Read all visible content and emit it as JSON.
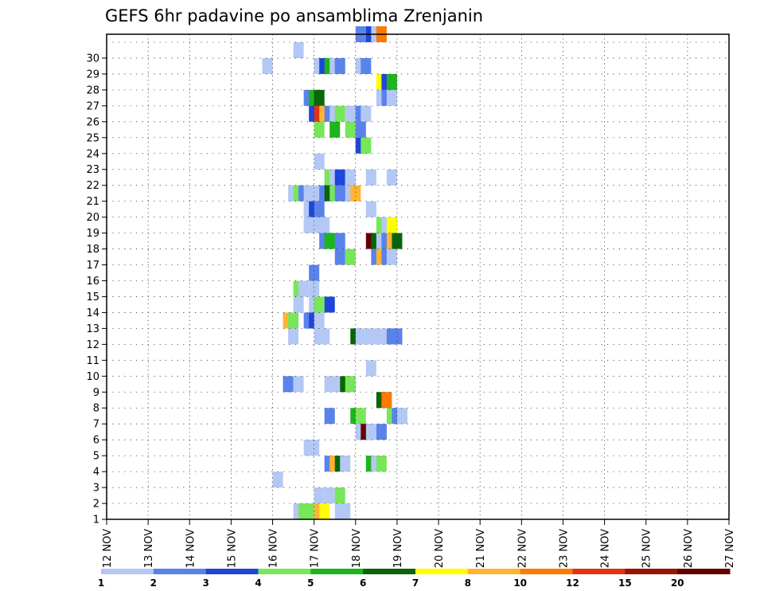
{
  "chart_data": {
    "type": "heatmap",
    "title": "GEFS 6hr padavine po ansamblima Zrenjanin",
    "x_labels": [
      "12 NOV",
      "13 NOV",
      "14 NOV",
      "15 NOV",
      "16 NOV",
      "17 NOV",
      "18 NOV",
      "19 NOV",
      "20 NOV",
      "21 NOV",
      "22 NOV",
      "23 NOV",
      "24 NOV",
      "25 NOV",
      "26 NOV",
      "27 NOV"
    ],
    "y_labels": [
      "1",
      "2",
      "3",
      "4",
      "5",
      "6",
      "7",
      "8",
      "9",
      "10",
      "11",
      "12",
      "13",
      "14",
      "15",
      "16",
      "17",
      "18",
      "19",
      "20",
      "21",
      "22",
      "23",
      "24",
      "25",
      "26",
      "27",
      "28",
      "29",
      "30"
    ],
    "steps_per_day": 4,
    "grid": true,
    "legend": {
      "position": "bottom",
      "labels": [
        "1",
        "2",
        "3",
        "4",
        "5",
        "6",
        "7",
        "8",
        "10",
        "12",
        "15",
        "20"
      ],
      "colors": [
        "#b4c8f5",
        "#5a82eb",
        "#1e46d7",
        "#78e65a",
        "#1eb41e",
        "#0a640a",
        "#ffff00",
        "#ffb432",
        "#ff7800",
        "#e13214",
        "#961400",
        "#640000"
      ]
    },
    "bin_colors": [
      "#b4c8f5",
      "#5a82eb",
      "#1e46d7",
      "#78e65a",
      "#1eb41e",
      "#0a640a",
      "#ffff00",
      "#ffb432",
      "#ff7800",
      "#e13214",
      "#961400",
      "#640000"
    ],
    "bin_values": [
      1,
      2,
      3,
      4,
      5,
      6,
      7,
      8,
      10,
      12,
      15,
      20
    ],
    "cells": [
      [
        30,
        24,
        2
      ],
      [
        30,
        25,
        3
      ],
      [
        30,
        25.5,
        1
      ],
      [
        30,
        26,
        9
      ],
      [
        29,
        18,
        1
      ],
      [
        28,
        15,
        1
      ],
      [
        28,
        20,
        1
      ],
      [
        28,
        20.5,
        3
      ],
      [
        28,
        21,
        5
      ],
      [
        28,
        21.5,
        1
      ],
      [
        28,
        22,
        2
      ],
      [
        28,
        24,
        1
      ],
      [
        28,
        24.5,
        2
      ],
      [
        27,
        26,
        7
      ],
      [
        27,
        26.5,
        3
      ],
      [
        27,
        27,
        5
      ],
      [
        26,
        19,
        2
      ],
      [
        26,
        19.5,
        5
      ],
      [
        26,
        20,
        6
      ],
      [
        26,
        26,
        1
      ],
      [
        26,
        26.5,
        2
      ],
      [
        26,
        27,
        1
      ],
      [
        25,
        19.5,
        3
      ],
      [
        25,
        20,
        10
      ],
      [
        25,
        20.5,
        8
      ],
      [
        25,
        21,
        2
      ],
      [
        25,
        21.5,
        1
      ],
      [
        25,
        22,
        4
      ],
      [
        25,
        23,
        1
      ],
      [
        25,
        23.5,
        1
      ],
      [
        25,
        24,
        2
      ],
      [
        25,
        24.5,
        1
      ],
      [
        24,
        20,
        4
      ],
      [
        24,
        21.5,
        5
      ],
      [
        24,
        23,
        4
      ],
      [
        24,
        24,
        2
      ],
      [
        23,
        24,
        3
      ],
      [
        23,
        24.5,
        4
      ],
      [
        22,
        20,
        1
      ],
      [
        21,
        21,
        4
      ],
      [
        21,
        21.5,
        1
      ],
      [
        21,
        22,
        3
      ],
      [
        21,
        23,
        1
      ],
      [
        21,
        25,
        1
      ],
      [
        21,
        27,
        1
      ],
      [
        20,
        17.5,
        1
      ],
      [
        20,
        18,
        4
      ],
      [
        20,
        18.5,
        2
      ],
      [
        20,
        19,
        1
      ],
      [
        20,
        20,
        1
      ],
      [
        20,
        20.5,
        2
      ],
      [
        20,
        21,
        6
      ],
      [
        20,
        21.5,
        4
      ],
      [
        20,
        22,
        2
      ],
      [
        20,
        22.5,
        2
      ],
      [
        20,
        23,
        1
      ],
      [
        20,
        23.5,
        8
      ],
      [
        19,
        19,
        1
      ],
      [
        19,
        19.5,
        3
      ],
      [
        19,
        20,
        2
      ],
      [
        19,
        25,
        1
      ],
      [
        18,
        19,
        1
      ],
      [
        18,
        20,
        1
      ],
      [
        18,
        20.5,
        1
      ],
      [
        18,
        26,
        4
      ],
      [
        18,
        26.5,
        1
      ],
      [
        18,
        27,
        7
      ],
      [
        17,
        20.5,
        2
      ],
      [
        17,
        21,
        5
      ],
      [
        17,
        21.5,
        5
      ],
      [
        17,
        22,
        2
      ],
      [
        17,
        25,
        12
      ],
      [
        17,
        25.5,
        6
      ],
      [
        17,
        26,
        1
      ],
      [
        17,
        26.5,
        2
      ],
      [
        17,
        27,
        8
      ],
      [
        17,
        27.5,
        6
      ],
      [
        16,
        22,
        2
      ],
      [
        16,
        23,
        4
      ],
      [
        16,
        25.5,
        2
      ],
      [
        16,
        26,
        8
      ],
      [
        16,
        26.5,
        2
      ],
      [
        16,
        27,
        1
      ],
      [
        15,
        19.5,
        2
      ],
      [
        14,
        18,
        4
      ],
      [
        14,
        18.5,
        1
      ],
      [
        14,
        19.5,
        1
      ],
      [
        13,
        18,
        1
      ],
      [
        13,
        19.5,
        1
      ],
      [
        13,
        20,
        4
      ],
      [
        13,
        21,
        3
      ],
      [
        12,
        17,
        8
      ],
      [
        12,
        17.5,
        4
      ],
      [
        12,
        19,
        2
      ],
      [
        12,
        19.5,
        3
      ],
      [
        12,
        20,
        1
      ],
      [
        11,
        17.5,
        1
      ],
      [
        11,
        20,
        1
      ],
      [
        11,
        20.5,
        1
      ],
      [
        11,
        23.5,
        6
      ],
      [
        11,
        24,
        1
      ],
      [
        11,
        24.5,
        1
      ],
      [
        11,
        25,
        1
      ],
      [
        11,
        25.5,
        1
      ],
      [
        11,
        26.5,
        1
      ],
      [
        11,
        27,
        2
      ],
      [
        11,
        27.5,
        2
      ],
      [
        9,
        25,
        1
      ],
      [
        8,
        17,
        2
      ],
      [
        8,
        18,
        1
      ],
      [
        8,
        21,
        1
      ],
      [
        8,
        21.5,
        1
      ],
      [
        8,
        22.5,
        6
      ],
      [
        8,
        23,
        4
      ],
      [
        7,
        26,
        6
      ],
      [
        7,
        26.5,
        9
      ],
      [
        6,
        21,
        2
      ],
      [
        6,
        23.5,
        5
      ],
      [
        6,
        24,
        4
      ],
      [
        6,
        27,
        4
      ],
      [
        6,
        27.5,
        2
      ],
      [
        6,
        28,
        1
      ],
      [
        5,
        24,
        1
      ],
      [
        5,
        24.5,
        12
      ],
      [
        5,
        25,
        1
      ],
      [
        5,
        26,
        2
      ],
      [
        4,
        19,
        1
      ],
      [
        4,
        19.5,
        1
      ],
      [
        3,
        21,
        2
      ],
      [
        3,
        21.5,
        8
      ],
      [
        3,
        22,
        6
      ],
      [
        3,
        22.5,
        1
      ],
      [
        3,
        25,
        5
      ],
      [
        3,
        25.5,
        1
      ],
      [
        3,
        26,
        4
      ],
      [
        2,
        16,
        1
      ],
      [
        1,
        20,
        1
      ],
      [
        1,
        21,
        1
      ],
      [
        1,
        22,
        4
      ],
      [
        0,
        18,
        1
      ],
      [
        0,
        18.5,
        4
      ],
      [
        0,
        19,
        4
      ],
      [
        0,
        20,
        8
      ],
      [
        0,
        20.5,
        7
      ],
      [
        0,
        22,
        1
      ],
      [
        0,
        22.5,
        1
      ]
    ]
  }
}
